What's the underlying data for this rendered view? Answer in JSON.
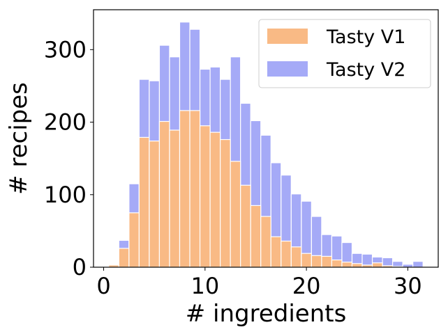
{
  "chart_data": {
    "type": "bar",
    "subtype": "overlaid-histogram",
    "xlabel": "# ingredients",
    "ylabel": "# recipes",
    "xlim": [
      -1,
      33
    ],
    "ylim": [
      0,
      355
    ],
    "xticks": [
      0,
      10,
      20,
      30
    ],
    "yticks": [
      0,
      100,
      200,
      300
    ],
    "bin_width": 1,
    "legend_position": "top-right",
    "series": [
      {
        "name": "Tasty V2",
        "color": "#a5aaf7",
        "x": [
          1,
          2,
          3,
          4,
          5,
          6,
          7,
          8,
          9,
          10,
          11,
          12,
          13,
          14,
          15,
          16,
          17,
          18,
          19,
          20,
          21,
          22,
          23,
          24,
          25,
          26,
          27,
          28,
          29,
          30,
          31
        ],
        "values": [
          3,
          37,
          115,
          259,
          257,
          306,
          290,
          338,
          328,
          273,
          276,
          259,
          290,
          226,
          202,
          182,
          144,
          127,
          101,
          91,
          70,
          45,
          43,
          34,
          19,
          18,
          14,
          13,
          8,
          4,
          8
        ]
      },
      {
        "name": "Tasty V1",
        "color": "#f9ba85",
        "x": [
          1,
          2,
          3,
          4,
          5,
          6,
          7,
          8,
          9,
          10,
          11,
          12,
          13,
          14,
          15,
          16,
          17,
          18,
          19,
          20,
          21,
          22,
          23,
          24,
          25,
          26,
          27,
          28,
          29,
          30,
          31
        ],
        "values": [
          3,
          26,
          75,
          179,
          174,
          201,
          189,
          216,
          216,
          195,
          186,
          176,
          146,
          113,
          85,
          70,
          42,
          36,
          28,
          19,
          16,
          15,
          10,
          7,
          5,
          3,
          6,
          2,
          1,
          0,
          0
        ]
      }
    ]
  }
}
